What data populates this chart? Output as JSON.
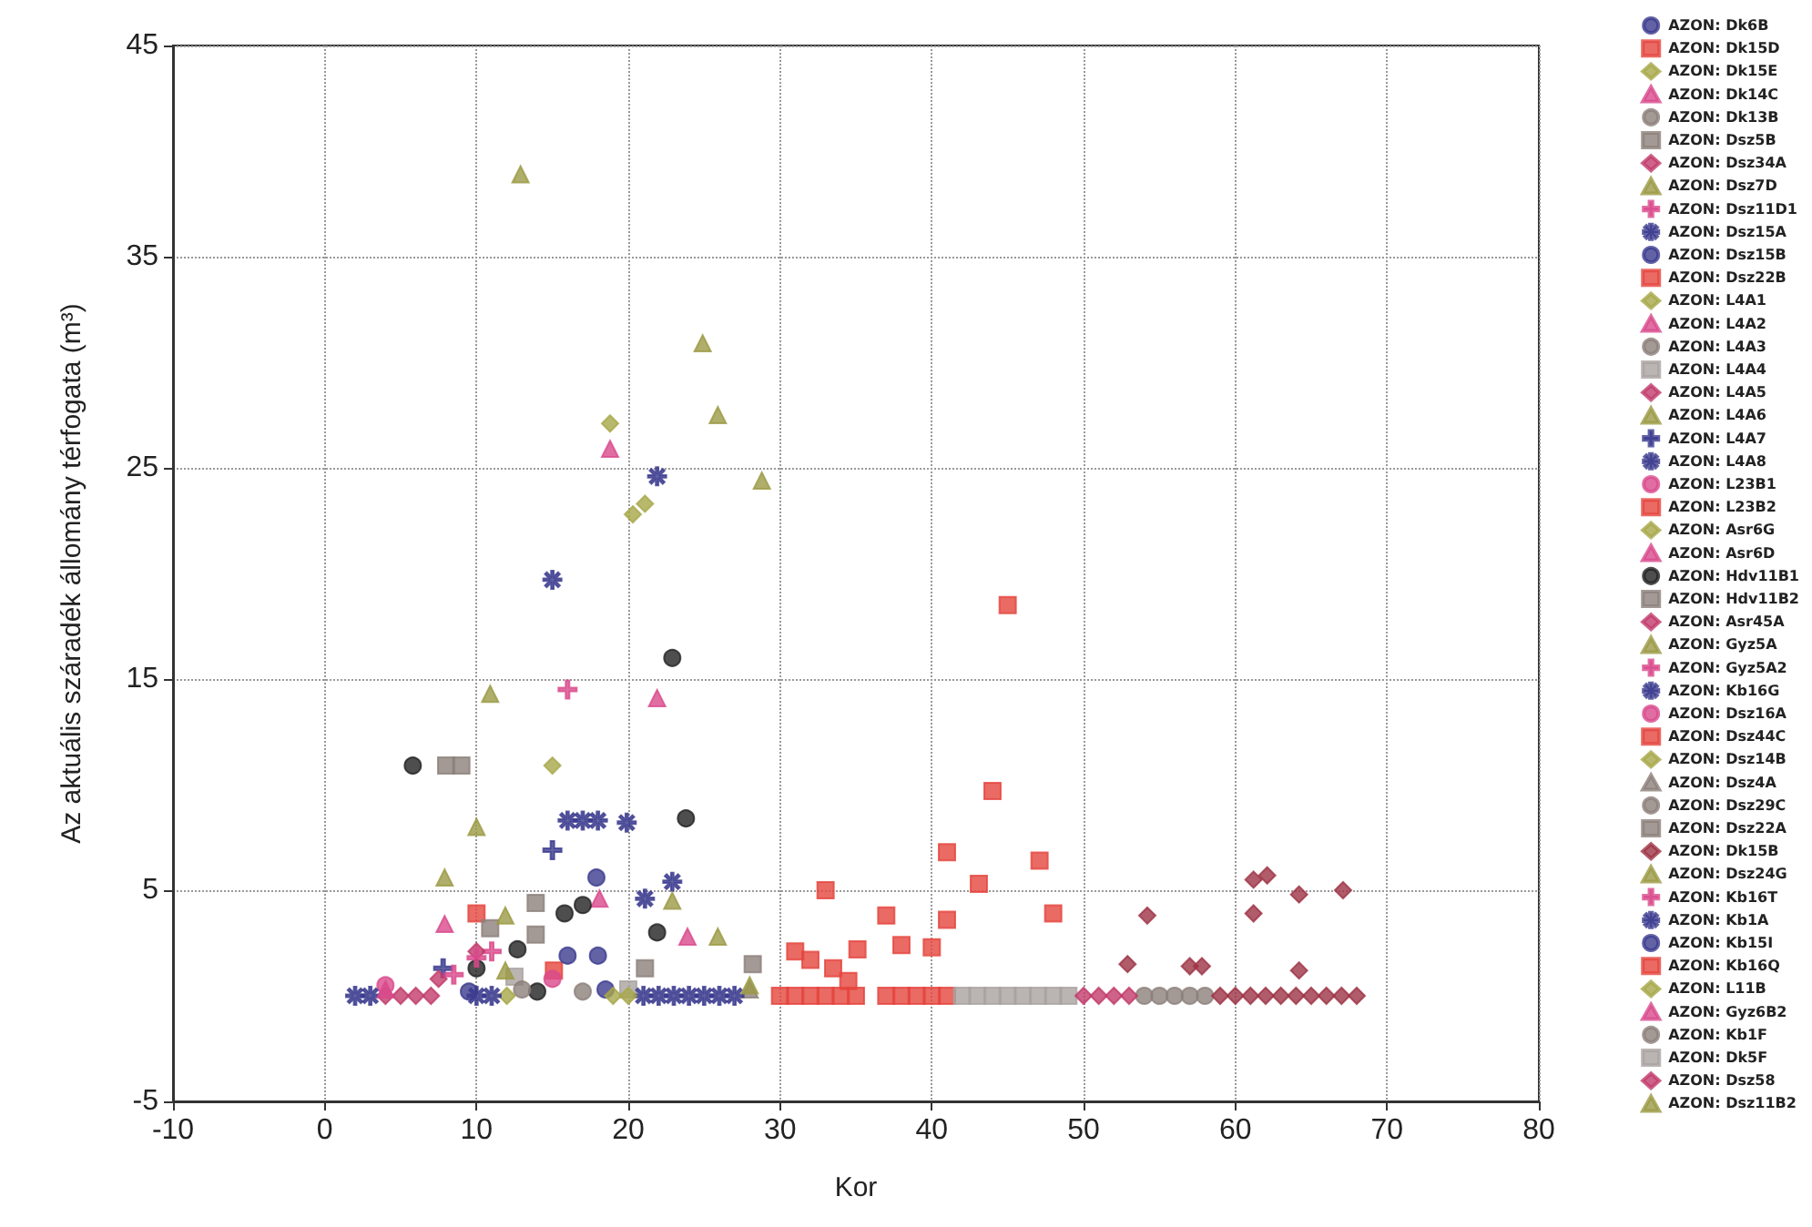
{
  "chart_data": {
    "type": "scatter",
    "xlabel": "Kor",
    "ylabel": "Az aktuális száradék állomány térfogata (m³)",
    "xlim": [
      -10,
      80
    ],
    "xticks": [
      -10,
      0,
      10,
      20,
      30,
      40,
      50,
      60,
      70,
      80
    ],
    "ylim": [
      -5,
      45
    ],
    "yticks": [
      -5,
      5,
      15,
      25,
      35,
      45
    ],
    "grid": true,
    "legend": "right",
    "series": [
      {
        "name": "AZON: Dk6B",
        "marker": "circle",
        "color": "#3b3b8f",
        "x": [
          17.9
        ],
        "values": [
          5.6
        ]
      },
      {
        "name": "AZON: Dk15D",
        "marker": "square",
        "color": "#e5453d",
        "x": [
          10,
          15.1
        ],
        "values": [
          3.9,
          1.2
        ]
      },
      {
        "name": "AZON: Dk15E",
        "marker": "diamond",
        "color": "#a8a84a",
        "x": [
          18.8
        ],
        "values": [
          27.1
        ]
      },
      {
        "name": "AZON: Dk14C",
        "marker": "triangle",
        "color": "#d94a8c",
        "x": [
          18.8
        ],
        "values": [
          25.9
        ]
      },
      {
        "name": "AZON: Dk13B",
        "marker": "circle",
        "color": "#8c807a",
        "x": [
          54,
          55
        ],
        "values": [
          0,
          0
        ]
      },
      {
        "name": "AZON: Dsz5B",
        "marker": "square",
        "color": "#8c807a",
        "x": [
          13.9,
          10.9
        ],
        "values": [
          4.4,
          3.2
        ]
      },
      {
        "name": "AZON: Dsz34A",
        "marker": "diamond",
        "color": "#c23b6b",
        "x": [
          4,
          5,
          6,
          7
        ],
        "values": [
          0,
          0,
          0,
          0
        ]
      },
      {
        "name": "AZON: Dsz7D",
        "marker": "triangle",
        "color": "#9b9a45",
        "x": [
          12.9,
          10.9,
          10
        ],
        "values": [
          38.9,
          14.3,
          8
        ]
      },
      {
        "name": "AZON: Dsz11D1",
        "marker": "cross",
        "color": "#d94a8c",
        "x": [
          11
        ],
        "values": [
          2.1
        ]
      },
      {
        "name": "AZON: Dsz15A",
        "marker": "star",
        "color": "#3b3b8f",
        "x": [
          21.9,
          15
        ],
        "values": [
          24.6,
          19.7
        ]
      },
      {
        "name": "AZON: Dsz15B",
        "marker": "circle",
        "color": "#3b3b8f",
        "x": [
          16,
          18
        ],
        "values": [
          1.9,
          1.9
        ]
      },
      {
        "name": "AZON: Dsz22B",
        "marker": "square",
        "color": "#e5453d",
        "x": [
          45,
          44,
          41
        ],
        "values": [
          18.5,
          9.7,
          6.8
        ]
      },
      {
        "name": "AZON: L4A1",
        "marker": "diamond",
        "color": "#a8a84a",
        "x": [
          20.3,
          21.1
        ],
        "values": [
          22.8,
          23.3
        ]
      },
      {
        "name": "AZON: L4A2",
        "marker": "triangle",
        "color": "#d94a8c",
        "x": [
          21.9
        ],
        "values": [
          14.1
        ]
      },
      {
        "name": "AZON: L4A3",
        "marker": "circle",
        "color": "#8c807a",
        "x": [
          56
        ],
        "values": [
          0
        ]
      },
      {
        "name": "AZON: L4A4",
        "marker": "square",
        "color": "#a9a3a0",
        "x": [
          12.5,
          20
        ],
        "values": [
          0.9,
          0.3
        ]
      },
      {
        "name": "AZON: L4A5",
        "marker": "diamond",
        "color": "#c23b6b",
        "x": [
          10
        ],
        "values": [
          2.1
        ]
      },
      {
        "name": "AZON: L4A6",
        "marker": "triangle",
        "color": "#9b9a45",
        "x": [
          24.9,
          25.9,
          28.8
        ],
        "values": [
          30.9,
          27.5,
          24.4
        ]
      },
      {
        "name": "AZON: L4A7",
        "marker": "cross",
        "color": "#3b3b8f",
        "x": [
          15,
          7.8
        ],
        "values": [
          6.9,
          1.3
        ]
      },
      {
        "name": "AZON: L4A8",
        "marker": "star",
        "color": "#3b3b8f",
        "x": [
          16,
          17,
          18
        ],
        "values": [
          8.3,
          8.3,
          8.3
        ]
      },
      {
        "name": "AZON: L23B1",
        "marker": "circle",
        "color": "#d94a8c",
        "x": [
          4
        ],
        "values": [
          0.5
        ]
      },
      {
        "name": "AZON: L23B2",
        "marker": "square",
        "color": "#e5453d",
        "x": [
          47.1,
          43.1,
          33,
          37,
          41,
          48
        ],
        "values": [
          6.4,
          5.3,
          5,
          3.8,
          3.6,
          3.9
        ]
      },
      {
        "name": "AZON: Asr6G",
        "marker": "diamond",
        "color": "#a8a84a",
        "x": [
          15
        ],
        "values": [
          10.9
        ]
      },
      {
        "name": "AZON: Asr6D",
        "marker": "triangle",
        "color": "#d94a8c",
        "x": [
          18.1,
          23.9
        ],
        "values": [
          4.6,
          2.8
        ]
      },
      {
        "name": "AZON: Hdv11B1",
        "marker": "circle",
        "color": "#222222",
        "x": [
          22.9,
          5.8,
          23.8,
          15.8,
          17,
          21.9,
          12.7,
          10,
          14
        ],
        "values": [
          16,
          10.9,
          8.4,
          3.9,
          4.3,
          3,
          2.2,
          1.3,
          0.2
        ]
      },
      {
        "name": "AZON: Hdv11B2",
        "marker": "square",
        "color": "#8c807a",
        "x": [
          8,
          9
        ],
        "values": [
          10.9,
          10.9
        ]
      },
      {
        "name": "AZON: Asr45A",
        "marker": "diamond",
        "color": "#c23b6b",
        "x": [
          7.5
        ],
        "values": [
          0.8
        ]
      },
      {
        "name": "AZON: Gyz5A",
        "marker": "triangle",
        "color": "#9b9a45",
        "x": [
          7.9,
          11.9
        ],
        "values": [
          5.6,
          3.8
        ]
      },
      {
        "name": "AZON: Gyz5A2",
        "marker": "cross",
        "color": "#d94a8c",
        "x": [
          16
        ],
        "values": [
          14.5
        ]
      },
      {
        "name": "AZON: Kb16G",
        "marker": "star",
        "color": "#3b3b8f",
        "x": [
          19.9,
          22.9,
          21.1
        ],
        "values": [
          8.2,
          5.4,
          4.6
        ]
      },
      {
        "name": "AZON: Dsz16A",
        "marker": "circle",
        "color": "#d94a8c",
        "x": [
          15
        ],
        "values": [
          0.8
        ]
      },
      {
        "name": "AZON: Dsz44C",
        "marker": "square",
        "color": "#e5453d",
        "x": [
          35.1,
          38,
          40,
          32,
          31,
          33.5,
          34.5
        ],
        "values": [
          2.2,
          2.4,
          2.3,
          1.7,
          2.1,
          1.3,
          0.7
        ]
      },
      {
        "name": "AZON: Dsz14B",
        "marker": "diamond",
        "color": "#a8a84a",
        "x": [
          12
        ],
        "values": [
          0
        ]
      },
      {
        "name": "AZON: Dsz4A",
        "marker": "triangle",
        "color": "#8c807a",
        "x": [
          28
        ],
        "values": [
          0.3
        ]
      },
      {
        "name": "AZON: Dsz29C",
        "marker": "circle",
        "color": "#8c807a",
        "x": [
          57,
          58
        ],
        "values": [
          0,
          0
        ]
      },
      {
        "name": "AZON: Dsz22A",
        "marker": "square",
        "color": "#8c807a",
        "x": [
          13.9,
          21.1,
          28.2
        ],
        "values": [
          2.9,
          1.3,
          1.5
        ]
      },
      {
        "name": "AZON: Dk15B",
        "marker": "diamond",
        "color": "#9e3345",
        "x": [
          54.2,
          61.2,
          62.1,
          64.2,
          67.1,
          61.2,
          52.9,
          57,
          57.8,
          64.2,
          59,
          60,
          61,
          62,
          63,
          64,
          65,
          66,
          67,
          68
        ],
        "values": [
          3.8,
          5.5,
          5.7,
          4.8,
          5,
          3.9,
          1.5,
          1.4,
          1.4,
          1.2,
          0,
          0,
          0,
          0,
          0,
          0,
          0,
          0,
          0,
          0
        ]
      },
      {
        "name": "AZON: Dsz24G",
        "marker": "triangle",
        "color": "#9b9a45",
        "x": [
          22.9,
          25.9
        ],
        "values": [
          4.5,
          2.8
        ]
      },
      {
        "name": "AZON: Kb16T",
        "marker": "cross",
        "color": "#d94a8c",
        "x": [
          10,
          8.5
        ],
        "values": [
          1.8,
          1
        ]
      },
      {
        "name": "AZON: Kb1A",
        "marker": "star",
        "color": "#3b3b8f",
        "x": [
          2,
          3,
          10,
          11,
          21,
          22,
          23,
          24,
          25,
          26,
          27
        ],
        "values": [
          0,
          0,
          0,
          0,
          0,
          0,
          0,
          0,
          0,
          0,
          0
        ]
      },
      {
        "name": "AZON: Kb15I",
        "marker": "circle",
        "color": "#3b3b8f",
        "x": [
          9.5,
          18.5
        ],
        "values": [
          0.2,
          0.3
        ]
      },
      {
        "name": "AZON: Kb16Q",
        "marker": "square",
        "color": "#e5453d",
        "x": [
          30,
          31,
          32,
          33,
          34,
          35,
          37,
          38,
          39,
          40,
          41
        ],
        "values": [
          0,
          0,
          0,
          0,
          0,
          0,
          0,
          0,
          0,
          0,
          0
        ]
      },
      {
        "name": "AZON: L11B",
        "marker": "diamond",
        "color": "#a8a84a",
        "x": [
          19,
          20
        ],
        "values": [
          0,
          0
        ]
      },
      {
        "name": "AZON: Gyz6B2",
        "marker": "triangle",
        "color": "#d94a8c",
        "x": [
          7.9,
          4
        ],
        "values": [
          3.4,
          0.3
        ]
      },
      {
        "name": "AZON: Kb1F",
        "marker": "circle",
        "color": "#8c807a",
        "x": [
          13,
          17
        ],
        "values": [
          0.3,
          0.2
        ]
      },
      {
        "name": "AZON: Dk5F",
        "marker": "square",
        "color": "#a9a3a0",
        "x": [
          42,
          43,
          44,
          45,
          46,
          47,
          48,
          49
        ],
        "values": [
          0,
          0,
          0,
          0,
          0,
          0,
          0,
          0
        ]
      },
      {
        "name": "AZON: Dsz58",
        "marker": "diamond",
        "color": "#c23b6b",
        "x": [
          50,
          51,
          52,
          53
        ],
        "values": [
          0,
          0,
          0,
          0
        ]
      },
      {
        "name": "AZON: Dsz11B2",
        "marker": "triangle",
        "color": "#9b9a45",
        "x": [
          11.9,
          28
        ],
        "values": [
          1.2,
          0.5
        ]
      }
    ]
  }
}
